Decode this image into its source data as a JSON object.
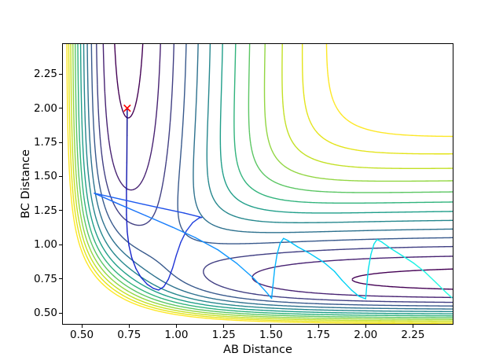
{
  "figure": {
    "background": "#ffffff",
    "title": ""
  },
  "chart_data": {
    "type": "line",
    "subtype": "contour-plot-with-trajectory",
    "title": "",
    "xlabel": "AB Distance",
    "ylabel": "BC Distance",
    "xlim": [
      0.4,
      2.46
    ],
    "ylim": [
      0.42,
      2.47
    ],
    "grid": false,
    "legend": null,
    "xticks": {
      "values": [
        0.5,
        0.75,
        1.0,
        1.25,
        1.5,
        1.75,
        2.0,
        2.25
      ],
      "labels": [
        "0.50",
        "0.75",
        "1.00",
        "1.25",
        "1.50",
        "1.75",
        "2.00",
        "2.25"
      ]
    },
    "yticks": {
      "values": [
        0.5,
        0.75,
        1.0,
        1.25,
        1.5,
        1.75,
        2.0,
        2.25
      ],
      "labels": [
        "0.50",
        "0.75",
        "1.00",
        "1.25",
        "1.50",
        "1.75",
        "2.00",
        "2.25"
      ]
    },
    "contours": {
      "surface": "LEPS potential energy surface V(rAB, rBC)",
      "colormap": "viridis",
      "levels": [
        -4.38,
        -4.105,
        -3.83,
        -3.555,
        -3.28,
        -3.005,
        -2.73,
        -2.455,
        -2.18,
        -1.905,
        -1.63,
        -1.355,
        -1.08
      ],
      "line_width": 1.4,
      "potential": {
        "alpha": 1.942,
        "r0": 0.742,
        "d_ab": 4.746,
        "d_bc": 4.746,
        "d_ac": 3.445,
        "a": 0.05,
        "b": 0.05,
        "c": 0.05
      }
    },
    "start_marker": {
      "x": 0.74,
      "y": 2.0,
      "symbol": "x",
      "color": "#ff0000"
    },
    "trajectory": {
      "description": "dynamics path from the red x marker; line color runs dark blue (start) to cyan (end)",
      "line_width": 1.4,
      "color_stops": [
        [
          0.0,
          "#08088c"
        ],
        [
          0.13,
          "#141ec8"
        ],
        [
          0.26,
          "#2037d7"
        ],
        [
          0.38,
          "#1e5af0"
        ],
        [
          0.5,
          "#197dfc"
        ],
        [
          0.62,
          "#0fa0ff"
        ],
        [
          0.74,
          "#00c3fa"
        ],
        [
          0.86,
          "#00deee"
        ],
        [
          1.0,
          "#2dffde"
        ]
      ],
      "points": [
        [
          0.74,
          1.99
        ],
        [
          0.739,
          1.8
        ],
        [
          0.738,
          1.6
        ],
        [
          0.736,
          1.4
        ],
        [
          0.736,
          1.22
        ],
        [
          0.74,
          1.095
        ],
        [
          0.749,
          0.995
        ],
        [
          0.764,
          0.905
        ],
        [
          0.786,
          0.825
        ],
        [
          0.813,
          0.76
        ],
        [
          0.846,
          0.71
        ],
        [
          0.878,
          0.68
        ],
        [
          0.906,
          0.668
        ],
        [
          0.933,
          0.692
        ],
        [
          0.958,
          0.748
        ],
        [
          0.98,
          0.83
        ],
        [
          1.0,
          0.925
        ],
        [
          1.023,
          1.018
        ],
        [
          1.051,
          1.098
        ],
        [
          1.086,
          1.162
        ],
        [
          1.12,
          1.196
        ],
        [
          1.134,
          1.2
        ],
        [
          1.04,
          1.232
        ],
        [
          0.93,
          1.265
        ],
        [
          0.82,
          1.298
        ],
        [
          0.7,
          1.335
        ],
        [
          0.566,
          1.377
        ],
        [
          0.7,
          1.295
        ],
        [
          0.84,
          1.212
        ],
        [
          0.98,
          1.128
        ],
        [
          1.1,
          1.052
        ],
        [
          1.22,
          0.962
        ],
        [
          1.32,
          0.862
        ],
        [
          1.41,
          0.752
        ],
        [
          1.472,
          0.658
        ],
        [
          1.503,
          0.607
        ],
        [
          1.51,
          0.7
        ],
        [
          1.519,
          0.82
        ],
        [
          1.532,
          0.93
        ],
        [
          1.548,
          1.01
        ],
        [
          1.566,
          1.046
        ],
        [
          1.59,
          1.03
        ],
        [
          1.64,
          0.985
        ],
        [
          1.7,
          0.94
        ],
        [
          1.78,
          0.87
        ],
        [
          1.835,
          0.805
        ],
        [
          1.875,
          0.74
        ],
        [
          1.925,
          0.668
        ],
        [
          1.965,
          0.622
        ],
        [
          2.0,
          0.604
        ],
        [
          2.006,
          0.7
        ],
        [
          2.014,
          0.82
        ],
        [
          2.028,
          0.93
        ],
        [
          2.044,
          1.005
        ],
        [
          2.06,
          1.038
        ],
        [
          2.085,
          1.02
        ],
        [
          2.13,
          0.975
        ],
        [
          2.195,
          0.918
        ],
        [
          2.255,
          0.864
        ],
        [
          2.315,
          0.798
        ],
        [
          2.375,
          0.718
        ],
        [
          2.425,
          0.65
        ],
        [
          2.456,
          0.612
        ]
      ]
    }
  }
}
